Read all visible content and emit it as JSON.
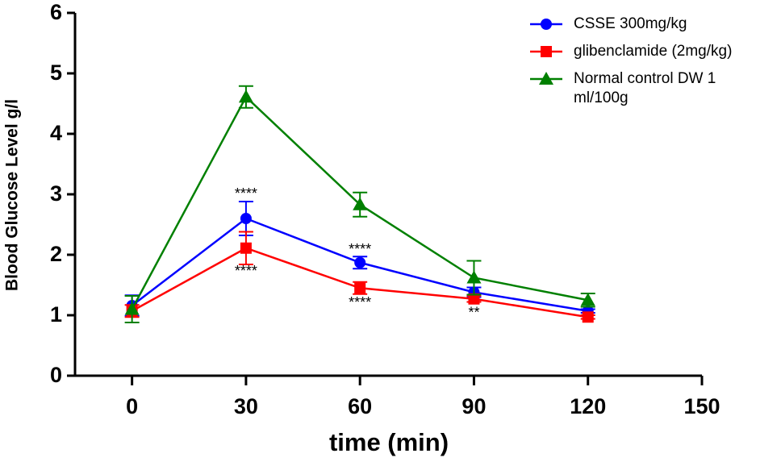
{
  "chart_data": {
    "type": "line",
    "x_label": "time (min)",
    "y_label": "Blood Glucose Level g/l",
    "x": [
      0,
      30,
      60,
      90,
      120
    ],
    "xlim": [
      -15,
      150
    ],
    "xticks": [
      0,
      30,
      60,
      90,
      120,
      150
    ],
    "ylim": [
      0,
      6
    ],
    "yticks": [
      0,
      1,
      2,
      3,
      4,
      5,
      6
    ],
    "legend": "top-right",
    "series": [
      {
        "name": "CSSE 300mg/kg",
        "color": "#0000ff",
        "marker": "circle",
        "values": [
          1.16,
          2.6,
          1.87,
          1.38,
          1.07
        ],
        "errors": [
          0.17,
          0.28,
          0.1,
          0.08,
          0.03
        ]
      },
      {
        "name": "glibenclamide (2mg/kg)",
        "color": "#ff0000",
        "marker": "square",
        "values": [
          1.07,
          2.11,
          1.45,
          1.27,
          0.97
        ],
        "errors": [
          0.1,
          0.27,
          0.1,
          0.05,
          0.03
        ]
      },
      {
        "name": "Normal control DW 1 ml/100g",
        "color": "#008000",
        "marker": "triangle",
        "values": [
          1.1,
          4.61,
          2.83,
          1.62,
          1.25
        ],
        "errors": [
          0.22,
          0.18,
          0.2,
          0.28,
          0.11
        ]
      }
    ],
    "annotations": [
      {
        "text": "****",
        "x": 30,
        "y": 3.0
      },
      {
        "text": "****",
        "x": 30,
        "y": 1.72
      },
      {
        "text": "****",
        "x": 60,
        "y": 2.08
      },
      {
        "text": "****",
        "x": 60,
        "y": 1.2
      },
      {
        "text": "**",
        "x": 90,
        "y": 1.03
      }
    ]
  }
}
